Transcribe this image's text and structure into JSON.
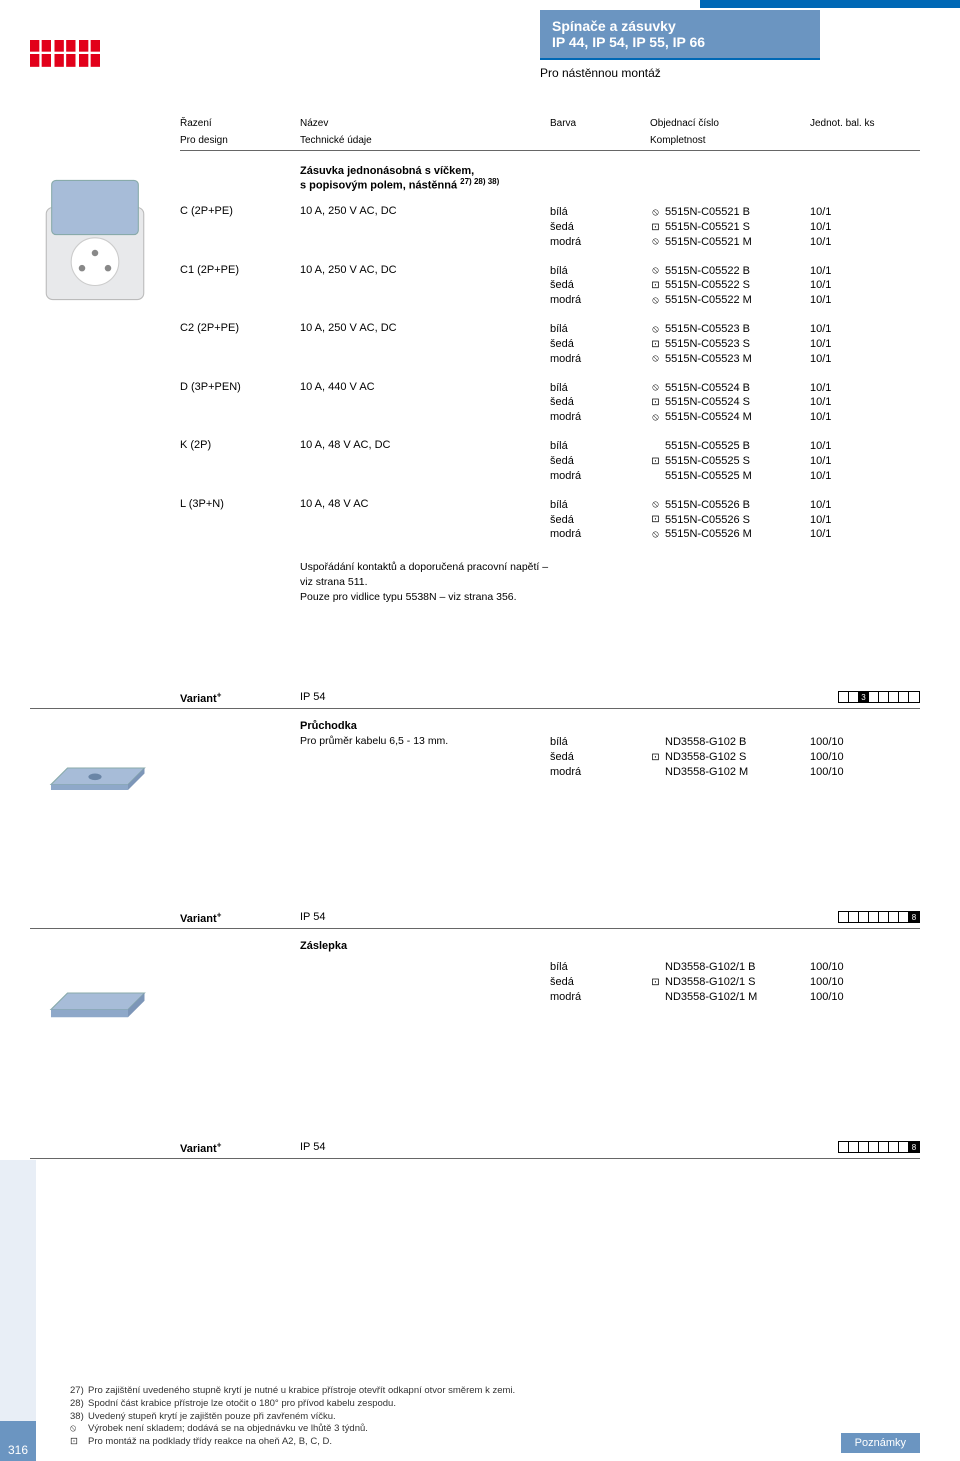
{
  "header": {
    "line1": "Spínače a zásuvky",
    "line2": "IP 44, IP 54, IP 55, IP 66",
    "sub": "Pro nástěnnou montáž"
  },
  "columns": {
    "r1": [
      "Řazení",
      "Název",
      "Barva",
      "Objednací číslo",
      "Jednot. bal. ks"
    ],
    "r2": [
      "Pro design",
      "Technické údaje",
      "",
      "Kompletnost",
      ""
    ]
  },
  "section1": {
    "title": "Zásuvka jednonásobná s víčkem,",
    "title2": "s popisovým polem, nástěnná",
    "sup": "27) 28) 38)",
    "rows": [
      {
        "c1": "C (2P+PE)",
        "c2": "10 A, 250 V AC, DC",
        "colors": [
          "bílá",
          "šedá",
          "modrá"
        ],
        "orders": [
          {
            "s": "⦸",
            "n": "5515N-C05521 B"
          },
          {
            "s": "⊡",
            "n": "5515N-C05521 S"
          },
          {
            "s": "⦸",
            "n": "5515N-C05521 M"
          }
        ],
        "qty": [
          "10/1",
          "10/1",
          "10/1"
        ]
      },
      {
        "c1": "C1 (2P+PE)",
        "c2": "10 A, 250 V AC, DC",
        "colors": [
          "bílá",
          "šedá",
          "modrá"
        ],
        "orders": [
          {
            "s": "⦸",
            "n": "5515N-C05522 B"
          },
          {
            "s": "⊡",
            "n": "5515N-C05522 S"
          },
          {
            "s": "⦸",
            "n": "5515N-C05522 M"
          }
        ],
        "qty": [
          "10/1",
          "10/1",
          "10/1"
        ]
      },
      {
        "c1": "C2 (2P+PE)",
        "c2": "10 A, 250 V AC, DC",
        "colors": [
          "bílá",
          "šedá",
          "modrá"
        ],
        "orders": [
          {
            "s": "⦸",
            "n": "5515N-C05523 B"
          },
          {
            "s": "⊡",
            "n": "5515N-C05523 S"
          },
          {
            "s": "⦸",
            "n": "5515N-C05523 M"
          }
        ],
        "qty": [
          "10/1",
          "10/1",
          "10/1"
        ]
      },
      {
        "c1": "D (3P+PEN)",
        "c2": "10 A, 440 V AC",
        "colors": [
          "bílá",
          "šedá",
          "modrá"
        ],
        "orders": [
          {
            "s": "⦸",
            "n": "5515N-C05524 B"
          },
          {
            "s": "⊡",
            "n": "5515N-C05524 S"
          },
          {
            "s": "⦸",
            "n": "5515N-C05524 M"
          }
        ],
        "qty": [
          "10/1",
          "10/1",
          "10/1"
        ]
      },
      {
        "c1": "K (2P)",
        "c2": "10 A, 48 V AC, DC",
        "colors": [
          "bílá",
          "šedá",
          "modrá"
        ],
        "orders": [
          {
            "s": "",
            "n": "5515N-C05525 B"
          },
          {
            "s": "⊡",
            "n": "5515N-C05525 S"
          },
          {
            "s": "",
            "n": "5515N-C05525 M"
          }
        ],
        "qty": [
          "10/1",
          "10/1",
          "10/1"
        ]
      },
      {
        "c1": "L (3P+N)",
        "c2": "10 A, 48 V AC",
        "colors": [
          "bílá",
          "šedá",
          "modrá"
        ],
        "orders": [
          {
            "s": "⦸",
            "n": "5515N-C05526 B"
          },
          {
            "s": "⊡",
            "n": "5515N-C05526 S"
          },
          {
            "s": "⦸",
            "n": "5515N-C05526 M"
          }
        ],
        "qty": [
          "10/1",
          "10/1",
          "10/1"
        ]
      }
    ],
    "note1": "Uspořádání kontaktů a doporučená pracovní napětí – viz strana 511.",
    "note2": "Pouze pro vidlice typu 5538N – viz strana 356."
  },
  "section2": {
    "variant": "Variant",
    "ip": "IP 54",
    "gridFilled": 3,
    "gridTotal": 8,
    "title": "Průchodka",
    "desc": "Pro průměr kabelu 6,5 - 13 mm.",
    "colors": [
      "bílá",
      "šedá",
      "modrá"
    ],
    "orders": [
      {
        "s": "",
        "n": "ND3558-G102 B"
      },
      {
        "s": "⊡",
        "n": "ND3558-G102 S"
      },
      {
        "s": "",
        "n": "ND3558-G102 M"
      }
    ],
    "qty": [
      "100/10",
      "100/10",
      "100/10"
    ]
  },
  "section3": {
    "variant": "Variant",
    "ip": "IP 54",
    "gridFilled": 8,
    "gridTotal": 8,
    "title": "Záslepka",
    "colors": [
      "bílá",
      "šedá",
      "modrá"
    ],
    "orders": [
      {
        "s": "",
        "n": "ND3558-G102/1 B"
      },
      {
        "s": "⊡",
        "n": "ND3558-G102/1 S"
      },
      {
        "s": "",
        "n": "ND3558-G102/1 M"
      }
    ],
    "qty": [
      "100/10",
      "100/10",
      "100/10"
    ]
  },
  "section4": {
    "variant": "Variant",
    "ip": "IP 54",
    "gridFilled": 8,
    "gridTotal": 8
  },
  "footnotes": [
    {
      "s": "27)",
      "t": "Pro zajištění uvedeného stupně krytí je nutné u krabice přístroje otevřít odkapní otvor směrem k zemi."
    },
    {
      "s": "28)",
      "t": "Spodní část krabice přístroje lze otočit o 180° pro přívod kabelu zespodu."
    },
    {
      "s": "38)",
      "t": "Uvedený stupeň krytí je zajištěn pouze při zavřeném víčku."
    },
    {
      "s": "⦸",
      "t": "Výrobek není skladem; dodává se na objednávku ve lhůtě 3 týdnů."
    },
    {
      "s": "⊡",
      "t": "Pro montáž na podklady třídy reakce na oheň A2, B, C, D."
    }
  ],
  "footer": {
    "notes": "Poznámky",
    "page": "316"
  }
}
